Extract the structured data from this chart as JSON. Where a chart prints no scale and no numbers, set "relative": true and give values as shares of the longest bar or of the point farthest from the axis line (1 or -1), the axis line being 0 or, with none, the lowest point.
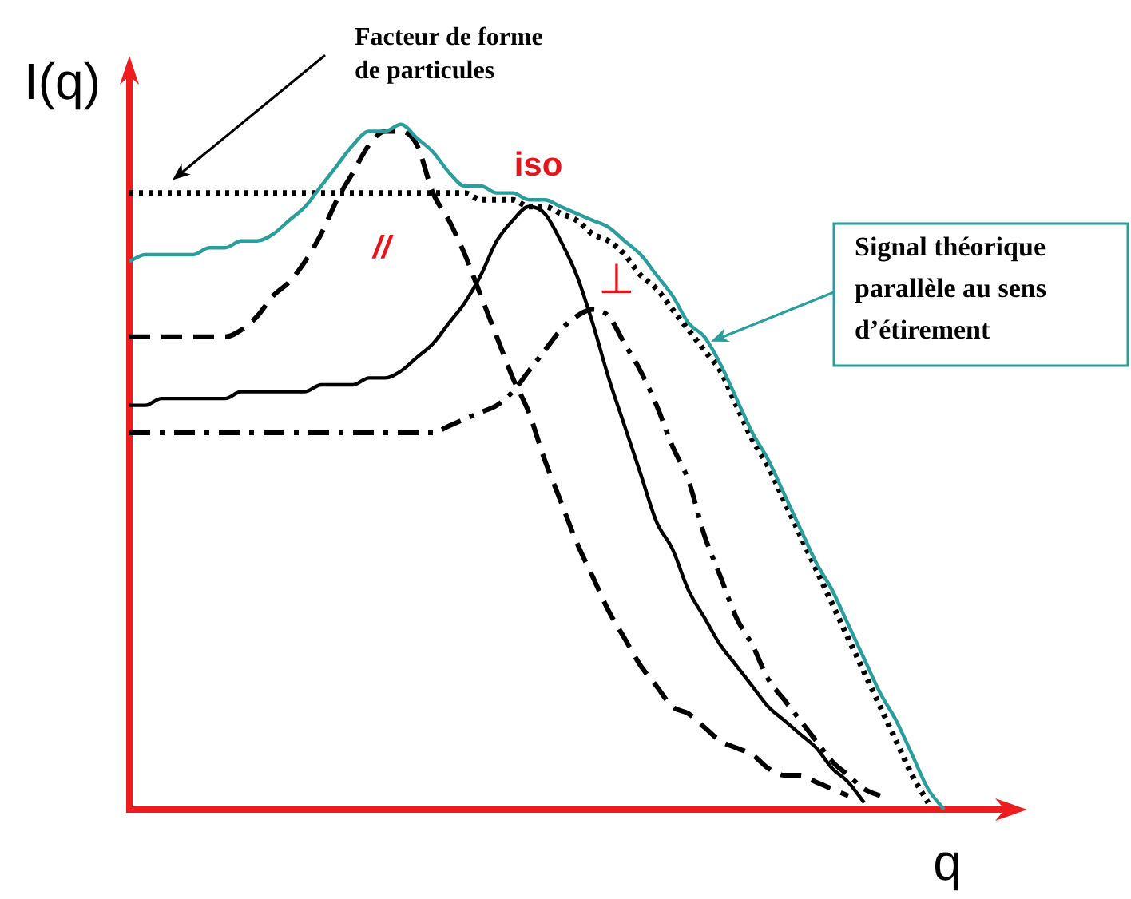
{
  "chart_data": {
    "type": "line",
    "relative": true,
    "xlabel": "q",
    "ylabel": "I(q)",
    "annotations": [
      "Facteur de forme de particules",
      "Signal théorique parallèle au sens d’étirement",
      "iso"
    ],
    "categories": [
      null,
      null,
      null,
      null,
      null,
      null,
      null,
      null,
      null,
      null,
      null,
      null,
      null,
      null,
      null,
      null,
      null,
      null,
      null,
      null,
      null,
      null,
      null,
      null,
      null,
      null,
      null,
      null,
      null,
      null,
      null,
      null,
      null,
      null,
      null,
      null,
      null,
      null,
      null,
      null,
      null,
      null,
      null,
      null,
      null,
      null,
      null,
      null,
      null,
      null,
      null,
      null,
      null,
      null,
      null,
      null,
      null
    ],
    "series": [
      {
        "color": "#2a9d9d",
        "line_style": "solid",
        "values": [
          0.8,
          0.81,
          0.81,
          0.81,
          0.81,
          0.82,
          0.82,
          0.83,
          0.83,
          0.84,
          0.86,
          0.88,
          0.91,
          0.94,
          0.97,
          0.99,
          0.99,
          1,
          0.98,
          0.96,
          0.93,
          0.91,
          0.91,
          0.9,
          0.9,
          0.89,
          0.89,
          0.88,
          0.87,
          0.86,
          0.85,
          0.83,
          0.81,
          0.78,
          0.75,
          0.71,
          0.69,
          0.65,
          0.6,
          0.55,
          0.51,
          0.46,
          0.41,
          0.36,
          0.32,
          0.27,
          0.22,
          0.17,
          0.13,
          0.08,
          0.03,
          0,
          null,
          null,
          null,
          null,
          null
        ]
      },
      {
        "color": "#000000",
        "line_style": "dotted",
        "values": [
          0.9,
          0.9,
          0.9,
          0.9,
          0.9,
          0.9,
          0.9,
          0.9,
          0.9,
          0.9,
          0.9,
          0.9,
          0.9,
          0.9,
          0.9,
          0.9,
          0.9,
          0.9,
          0.9,
          0.9,
          0.9,
          0.9,
          0.89,
          0.89,
          0.89,
          0.88,
          0.88,
          0.87,
          0.86,
          0.84,
          0.83,
          0.81,
          0.78,
          0.76,
          0.73,
          0.7,
          0.67,
          0.64,
          0.59,
          0.54,
          0.5,
          0.45,
          0.4,
          0.35,
          0.3,
          0.25,
          0.2,
          0.15,
          0.1,
          0.05,
          0.01,
          null,
          null,
          null,
          null,
          null,
          null
        ]
      },
      {
        "name": "//",
        "color": "#000000",
        "line_style": "dashed",
        "values": [
          0.69,
          0.69,
          0.69,
          0.69,
          0.69,
          0.69,
          0.69,
          0.7,
          0.72,
          0.75,
          0.77,
          0.8,
          0.84,
          0.89,
          0.93,
          0.97,
          0.99,
          0.99,
          0.97,
          0.9,
          0.86,
          0.81,
          0.75,
          0.69,
          0.63,
          0.58,
          0.51,
          0.45,
          0.39,
          0.34,
          0.29,
          0.25,
          0.21,
          0.18,
          0.15,
          0.14,
          0.12,
          0.1,
          0.09,
          0.08,
          0.06,
          0.05,
          0.05,
          0.04,
          0.03,
          0.02,
          null,
          null,
          null,
          null,
          null,
          null,
          null,
          null,
          null,
          null,
          null
        ]
      },
      {
        "color": "#000000",
        "line_style": "solid",
        "values": [
          0.59,
          0.59,
          0.6,
          0.6,
          0.6,
          0.6,
          0.6,
          0.61,
          0.61,
          0.61,
          0.61,
          0.61,
          0.62,
          0.62,
          0.62,
          0.63,
          0.63,
          0.64,
          0.66,
          0.68,
          0.71,
          0.74,
          0.78,
          0.83,
          0.86,
          0.88,
          0.87,
          0.83,
          0.78,
          0.71,
          0.63,
          0.56,
          0.49,
          0.42,
          0.38,
          0.32,
          0.28,
          0.24,
          0.21,
          0.18,
          0.15,
          0.13,
          0.11,
          0.09,
          0.06,
          0.04,
          0.01,
          null,
          null,
          null,
          null,
          null,
          null,
          null,
          null,
          null,
          null
        ]
      },
      {
        "name": "⊥",
        "color": "#000000",
        "line_style": "dashdot",
        "values": [
          0.55,
          0.55,
          0.55,
          0.55,
          0.55,
          0.55,
          0.55,
          0.55,
          0.55,
          0.55,
          0.55,
          0.55,
          0.55,
          0.55,
          0.55,
          0.55,
          0.55,
          0.55,
          0.55,
          0.55,
          0.56,
          0.57,
          0.58,
          0.59,
          0.61,
          0.64,
          0.67,
          0.7,
          0.72,
          0.73,
          0.72,
          0.68,
          0.64,
          0.59,
          0.53,
          0.48,
          0.4,
          0.34,
          0.28,
          0.24,
          0.19,
          0.16,
          0.13,
          0.1,
          0.07,
          0.05,
          0.03,
          0.02,
          null,
          null,
          null,
          null,
          null,
          null,
          null,
          null,
          null
        ]
      }
    ]
  }
}
